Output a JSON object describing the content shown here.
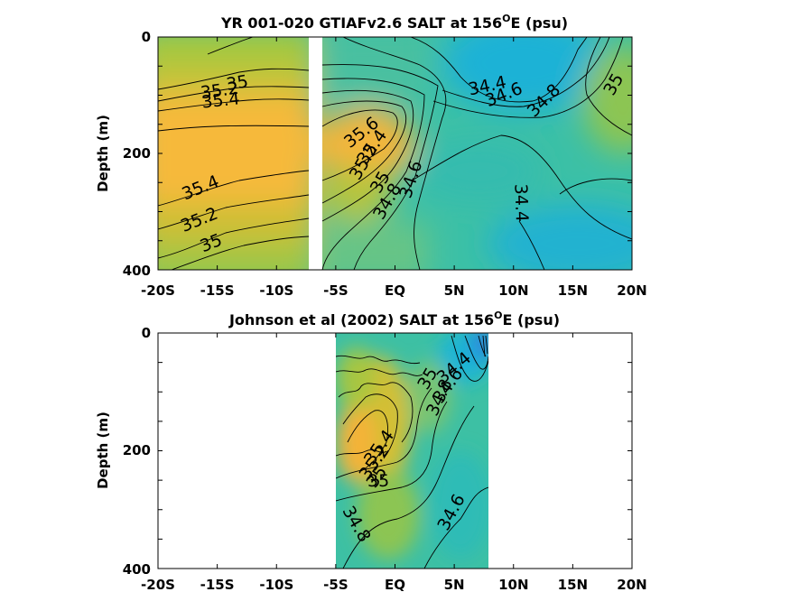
{
  "chart_data": [
    {
      "type": "contour",
      "title": "YR 001-020 GTIAFv2.6 SALT at 156",
      "title_sup": "O",
      "title_tail": "E (psu)",
      "ylabel": "Depth (m)",
      "xlabel": "",
      "x_ticks": [
        "-20S",
        "-15S",
        "-10S",
        "-5S",
        "EQ",
        "5N",
        "10N",
        "15N",
        "20N"
      ],
      "y_ticks": [
        "0",
        "200",
        "400"
      ],
      "xlim": [
        -20,
        20
      ],
      "ylim": [
        0,
        400
      ],
      "gap_lat": [
        -7.4,
        -6.1
      ],
      "contour_labels": [
        {
          "text": "35",
          "lat": -13.3,
          "depth": 80,
          "rot": -10
        },
        {
          "text": "35.2",
          "lat": -14.8,
          "depth": 93,
          "rot": -8
        },
        {
          "text": "35.4",
          "lat": -14.7,
          "depth": 110,
          "rot": -6
        },
        {
          "text": "35.4",
          "lat": -16.4,
          "depth": 260,
          "rot": -22
        },
        {
          "text": "35.2",
          "lat": -16.5,
          "depth": 315,
          "rot": -22
        },
        {
          "text": "35",
          "lat": -15.5,
          "depth": 355,
          "rot": -22
        },
        {
          "text": "35.6",
          "lat": -2.8,
          "depth": 165,
          "rot": -38
        },
        {
          "text": "35.4",
          "lat": -1.9,
          "depth": 190,
          "rot": -55
        },
        {
          "text": "35.2",
          "lat": -2.6,
          "depth": 215,
          "rot": -60
        },
        {
          "text": "35",
          "lat": -1.2,
          "depth": 250,
          "rot": -60
        },
        {
          "text": "34.8",
          "lat": -0.6,
          "depth": 283,
          "rot": -60
        },
        {
          "text": "34.6",
          "lat": 1.4,
          "depth": 245,
          "rot": -72
        },
        {
          "text": "34.4",
          "lat": 7.8,
          "depth": 85,
          "rot": -12
        },
        {
          "text": "34.6",
          "lat": 9.2,
          "depth": 100,
          "rot": -22
        },
        {
          "text": "34.8",
          "lat": 12.6,
          "depth": 110,
          "rot": -45
        },
        {
          "text": "35",
          "lat": 18.5,
          "depth": 82,
          "rot": -60
        },
        {
          "text": "34.4",
          "lat": 10.6,
          "depth": 285,
          "rot": 88
        }
      ],
      "field_description": "salinity peak 35.6 psu near 10S-5S at 100-250 m; minimum 34.4 psu north of 5N"
    },
    {
      "type": "contour",
      "title": "Johnson et al (2002) SALT at 156",
      "title_sup": "O",
      "title_tail": "E (psu)",
      "ylabel": "Depth (m)",
      "xlabel": "",
      "x_ticks": [
        "-20S",
        "-15S",
        "-10S",
        "-5S",
        "EQ",
        "5N",
        "10N",
        "15N",
        "20N"
      ],
      "y_ticks": [
        "0",
        "200",
        "400"
      ],
      "xlim": [
        -20,
        20
      ],
      "ylim": [
        0,
        400
      ],
      "data_lat_range": [
        -5.3,
        8.0
      ],
      "contour_labels": [
        {
          "text": "34.4",
          "lat": 5.0,
          "depth": 60,
          "rot": -40
        },
        {
          "text": "34.6",
          "lat": 4.5,
          "depth": 90,
          "rot": -55
        },
        {
          "text": "34.8",
          "lat": 3.8,
          "depth": 110,
          "rot": -65
        },
        {
          "text": "35",
          "lat": 2.8,
          "depth": 78,
          "rot": -60
        },
        {
          "text": "35.4",
          "lat": -1.3,
          "depth": 195,
          "rot": -55
        },
        {
          "text": "35.2",
          "lat": -1.7,
          "depth": 220,
          "rot": -55
        },
        {
          "text": "35",
          "lat": -1.5,
          "depth": 245,
          "rot": -55
        },
        {
          "text": "35",
          "lat": -1.4,
          "depth": 252,
          "rot": 0
        },
        {
          "text": "34.8",
          "lat": -3.3,
          "depth": 325,
          "rot": 60
        },
        {
          "text": "34.6",
          "lat": 4.8,
          "depth": 305,
          "rot": -62
        }
      ],
      "field_description": "salinity peak 35.4 psu near 5S at 150-200 m; low salinity 34.4 near 8N surface"
    }
  ]
}
